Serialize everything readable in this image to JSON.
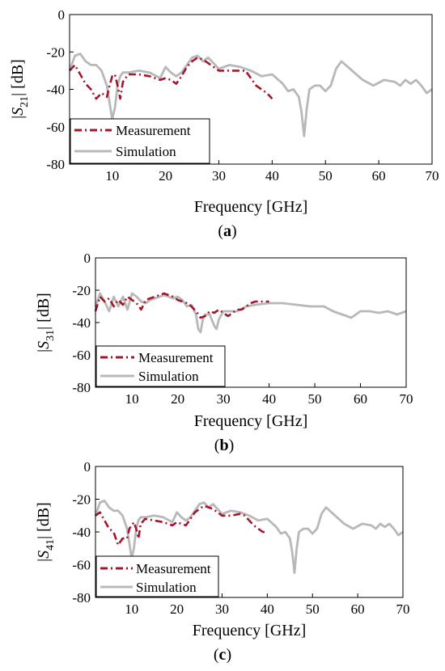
{
  "colors": {
    "measurement": "#a5152b",
    "simulation": "#b8b8b8",
    "axis": "#000000"
  },
  "chart_data": [
    {
      "type": "line",
      "caption": {
        "open": "(",
        "letter": "a",
        "close": ")"
      },
      "xlabel": "Frequency [GHz]",
      "ylabel": {
        "bar_left": "|",
        "sym": "S",
        "sub": "21",
        "bar_right": "|",
        "unit": " [dB]"
      },
      "xlim": [
        2,
        70
      ],
      "ylim": [
        -80,
        0
      ],
      "xticks": [
        10,
        20,
        30,
        40,
        50,
        60,
        70
      ],
      "yticks": [
        0,
        -20,
        -40,
        -60,
        -80
      ],
      "grid": false,
      "legend_position": "bottom-left",
      "series": [
        {
          "name": "Measurement",
          "style": "dashdot",
          "x": [
            2,
            3,
            4,
            5,
            6,
            7,
            8,
            9,
            9.5,
            10,
            10.5,
            11,
            11.5,
            12,
            13,
            15,
            17,
            19,
            20,
            21,
            22,
            23,
            24,
            25,
            26,
            27,
            28,
            29,
            30,
            32,
            34,
            35,
            36,
            37,
            38,
            39,
            40
          ],
          "y": [
            -30,
            -27,
            -32,
            -37,
            -40,
            -45,
            -42,
            -44,
            -38,
            -33,
            -32,
            -38,
            -45,
            -36,
            -32,
            -32,
            -33,
            -35,
            -34,
            -35,
            -37,
            -33,
            -28,
            -25,
            -23,
            -24,
            -26,
            -28,
            -30,
            -30,
            -30,
            -30,
            -34,
            -38,
            -40,
            -42,
            -45
          ]
        },
        {
          "name": "Simulation",
          "style": "solid",
          "x": [
            2,
            3,
            4,
            5,
            6,
            7,
            8,
            9,
            9.5,
            10,
            10.5,
            11,
            11.5,
            12,
            13,
            15,
            17,
            19,
            20,
            21,
            22,
            23,
            24,
            25,
            26,
            27,
            28,
            30,
            32,
            34,
            36,
            38,
            40,
            42,
            43,
            44,
            45,
            45.5,
            46,
            46.5,
            47,
            48,
            49,
            50,
            51,
            52,
            53,
            55,
            57,
            59,
            61,
            63,
            64,
            65,
            66,
            67,
            68,
            69,
            70
          ],
          "y": [
            -30,
            -22,
            -21,
            -25,
            -27,
            -27,
            -30,
            -38,
            -47,
            -56,
            -50,
            -38,
            -33,
            -31,
            -31,
            -30,
            -31,
            -34,
            -28,
            -31,
            -33,
            -31,
            -27,
            -23,
            -22,
            -25,
            -23,
            -29,
            -27,
            -28,
            -30,
            -33,
            -32,
            -37,
            -41,
            -40,
            -44,
            -52,
            -65,
            -50,
            -40,
            -38,
            -38,
            -41,
            -38,
            -29,
            -25,
            -30,
            -35,
            -38,
            -35,
            -36,
            -38,
            -35,
            -37,
            -35,
            -38,
            -42,
            -40
          ]
        }
      ]
    },
    {
      "type": "line",
      "caption": {
        "open": "(",
        "letter": "b",
        "close": ")"
      },
      "xlabel": "Frequency [GHz]",
      "ylabel": {
        "bar_left": "|",
        "sym": "S",
        "sub": "31",
        "bar_right": "|",
        "unit": " [dB]"
      },
      "xlim": [
        2,
        70
      ],
      "ylim": [
        -80,
        0
      ],
      "xticks": [
        10,
        20,
        30,
        40,
        50,
        60,
        70
      ],
      "yticks": [
        0,
        -20,
        -40,
        -60,
        -80
      ],
      "grid": false,
      "legend_position": "bottom-left",
      "series": [
        {
          "name": "Measurement",
          "style": "dashdot",
          "x": [
            2,
            3,
            4,
            5,
            6,
            7,
            8,
            9,
            10,
            11,
            12,
            13,
            14,
            15,
            16,
            17,
            18,
            19,
            20,
            21,
            22,
            23,
            24,
            25,
            26,
            27,
            28,
            29,
            30,
            31,
            32,
            33,
            34,
            35,
            36,
            37,
            38,
            39,
            40
          ],
          "y": [
            -33,
            -24,
            -27,
            -25,
            -30,
            -26,
            -29,
            -24,
            -26,
            -28,
            -32,
            -26,
            -25,
            -24,
            -23,
            -22,
            -23,
            -24,
            -26,
            -27,
            -28,
            -30,
            -33,
            -37,
            -36,
            -33,
            -34,
            -32,
            -34,
            -36,
            -34,
            -32,
            -32,
            -30,
            -28,
            -27,
            -27,
            -27,
            -27
          ]
        },
        {
          "name": "Simulation",
          "style": "solid",
          "x": [
            2,
            3,
            4,
            5,
            6,
            7,
            8,
            9,
            10,
            11,
            12,
            13,
            14,
            15,
            16,
            17,
            18,
            19,
            20,
            21,
            22,
            23,
            24,
            24.5,
            25,
            25.5,
            26,
            27,
            28,
            28.5,
            29,
            30,
            31,
            33,
            35,
            37,
            40,
            43,
            46,
            49,
            52,
            54,
            56,
            58,
            60,
            62,
            64,
            66,
            68,
            70
          ],
          "y": [
            -30,
            -22,
            -27,
            -33,
            -24,
            -30,
            -24,
            -32,
            -22,
            -24,
            -27,
            -28,
            -26,
            -25,
            -24,
            -23,
            -24,
            -25,
            -24,
            -26,
            -30,
            -29,
            -35,
            -44,
            -46,
            -38,
            -35,
            -35,
            -42,
            -44,
            -38,
            -33,
            -33,
            -33,
            -30,
            -29,
            -28,
            -28,
            -29,
            -30,
            -30,
            -33,
            -35,
            -37,
            -33,
            -33,
            -34,
            -33,
            -35,
            -33
          ]
        }
      ]
    },
    {
      "type": "line",
      "caption": {
        "open": "(",
        "letter": "c",
        "close": ")"
      },
      "xlabel": "Frequency [GHz]",
      "ylabel": {
        "bar_left": "|",
        "sym": "S",
        "sub": "41",
        "bar_right": "|",
        "unit": " [dB]"
      },
      "xlim": [
        2,
        70
      ],
      "ylim": [
        -80,
        0
      ],
      "xticks": [
        10,
        20,
        30,
        40,
        50,
        60,
        70
      ],
      "yticks": [
        0,
        -20,
        -40,
        -60,
        -80
      ],
      "grid": false,
      "legend_position": "bottom-left",
      "series": [
        {
          "name": "Measurement",
          "style": "dashdot",
          "x": [
            2,
            3,
            4,
            5,
            6,
            7,
            8,
            9,
            9.5,
            10,
            10.5,
            11,
            11.5,
            12,
            13,
            15,
            17,
            19,
            20,
            21,
            22,
            23,
            24,
            25,
            26,
            27,
            28,
            29,
            30,
            32,
            34,
            35,
            36,
            37,
            38,
            39,
            40
          ],
          "y": [
            -30,
            -28,
            -33,
            -38,
            -40,
            -48,
            -44,
            -44,
            -38,
            -36,
            -34,
            -38,
            -44,
            -35,
            -32,
            -33,
            -34,
            -36,
            -34,
            -35,
            -36,
            -32,
            -28,
            -26,
            -24,
            -25,
            -26,
            -28,
            -30,
            -30,
            -29,
            -30,
            -33,
            -36,
            -38,
            -40,
            -40
          ]
        },
        {
          "name": "Simulation",
          "style": "solid",
          "x": [
            2,
            3,
            4,
            5,
            6,
            7,
            8,
            9,
            9.5,
            10,
            10.5,
            11,
            11.5,
            12,
            13,
            15,
            17,
            19,
            20,
            21,
            22,
            23,
            24,
            25,
            26,
            27,
            28,
            30,
            32,
            34,
            36,
            38,
            40,
            42,
            43,
            44,
            45,
            45.5,
            46,
            46.5,
            47,
            48,
            49,
            50,
            51,
            52,
            53,
            55,
            57,
            59,
            61,
            63,
            64,
            65,
            66,
            67,
            68,
            69,
            70
          ],
          "y": [
            -30,
            -22,
            -21,
            -25,
            -27,
            -27,
            -30,
            -38,
            -47,
            -56,
            -50,
            -38,
            -33,
            -31,
            -31,
            -30,
            -31,
            -34,
            -28,
            -31,
            -33,
            -31,
            -27,
            -23,
            -22,
            -25,
            -23,
            -29,
            -27,
            -28,
            -30,
            -33,
            -32,
            -37,
            -41,
            -40,
            -44,
            -52,
            -65,
            -50,
            -40,
            -38,
            -38,
            -41,
            -38,
            -29,
            -25,
            -30,
            -35,
            -38,
            -35,
            -36,
            -38,
            -35,
            -37,
            -35,
            -38,
            -42,
            -40
          ]
        }
      ]
    }
  ]
}
